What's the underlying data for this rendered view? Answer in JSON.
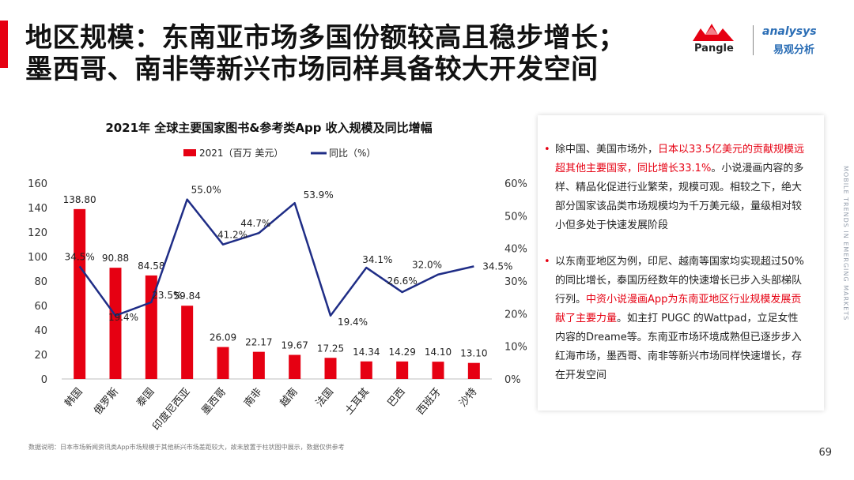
{
  "header": {
    "title_line1": "地区规模：东南亚市场多国份额较高且稳步增长；",
    "title_line2": "墨西哥、南非等新兴市场同样具备较大开发空间"
  },
  "logos": {
    "pangle": "Pangle",
    "analysys": "analysys",
    "analysys_cn": "易观分析"
  },
  "side_text": "MOBILE TRENDS IN EMERGING MARKETS",
  "chart_data": {
    "type": "bar",
    "title": "2021年 全球主要国家图书&参考类App  收入规模及同比增幅",
    "categories": [
      "韩国",
      "俄罗斯",
      "泰国",
      "印度尼西亚",
      "墨西哥",
      "南非",
      "越南",
      "法国",
      "土耳其",
      "巴西",
      "西班牙",
      "沙特"
    ],
    "series": [
      {
        "name": "2021（百万 美元）",
        "type": "bar",
        "axis": "left",
        "color": "#e60012",
        "values": [
          138.8,
          90.88,
          84.58,
          59.84,
          26.09,
          22.17,
          19.67,
          17.25,
          14.34,
          14.29,
          14.1,
          13.1
        ],
        "labels": [
          "138.80",
          "90.88",
          "84.58",
          "59.84",
          "26.09",
          "22.17",
          "19.67",
          "17.25",
          "14.34",
          "14.29",
          "14.10",
          "13.10"
        ]
      },
      {
        "name": "同比（%）",
        "type": "line",
        "axis": "right",
        "color": "#1f2d86",
        "values": [
          34.5,
          19.4,
          23.5,
          55.0,
          41.2,
          44.7,
          53.9,
          19.4,
          34.1,
          26.6,
          32.0,
          34.5
        ],
        "labels": [
          "34.5%",
          "19.4%",
          "23.5%",
          "55.0%",
          "41.2%",
          "44.7%",
          "53.9%",
          "19.4%",
          "34.1%",
          "26.6%",
          "32.0%",
          "34.5%"
        ]
      }
    ],
    "ylim_left": [
      0,
      160
    ],
    "yticks_left": [
      "0",
      "20",
      "40",
      "60",
      "80",
      "100",
      "120",
      "140",
      "160"
    ],
    "ylim_right": [
      0,
      60
    ],
    "yticks_right": [
      "0%",
      "10%",
      "20%",
      "30%",
      "40%",
      "50%",
      "60%"
    ],
    "legend_position": "top-center",
    "grid": false
  },
  "panel": {
    "bullet1": {
      "pre": "除中国、美国市场外，",
      "highlight": "日本以33.5亿美元的贡献规模远超其他主要国家，同比增长33.1%",
      "post": "。小说漫画内容的多样、精品化促进行业繁荣，规模可观。相较之下，绝大部分国家该品类市场规模均为千万美元级，量级相对较小但多处于快速发展阶段"
    },
    "bullet2": {
      "pre": "以东南亚地区为例，印尼、越南等国家均实现超过50%的同比增长，泰国历经数年的快速增长已步入头部梯队行列。",
      "highlight": "中资小说漫画App为东南亚地区行业规模发展贡献了主要力量",
      "post": "。如主打 PUGC 的Wattpad，立足女性内容的Dreame等。东南亚市场环境成熟但已逐步步入红海市场，墨西哥、南非等新兴市场同样快速增长，存在开发空间"
    }
  },
  "footnote": "数据说明：日本市场新闻资讯类App市场规模于其他新兴市场差距较大，故未放置于柱状图中展示，数据仅供参考",
  "page_number": "69",
  "colors": {
    "accent": "#e60012",
    "line": "#1f2d86",
    "brand_blue": "#2a6db5"
  }
}
